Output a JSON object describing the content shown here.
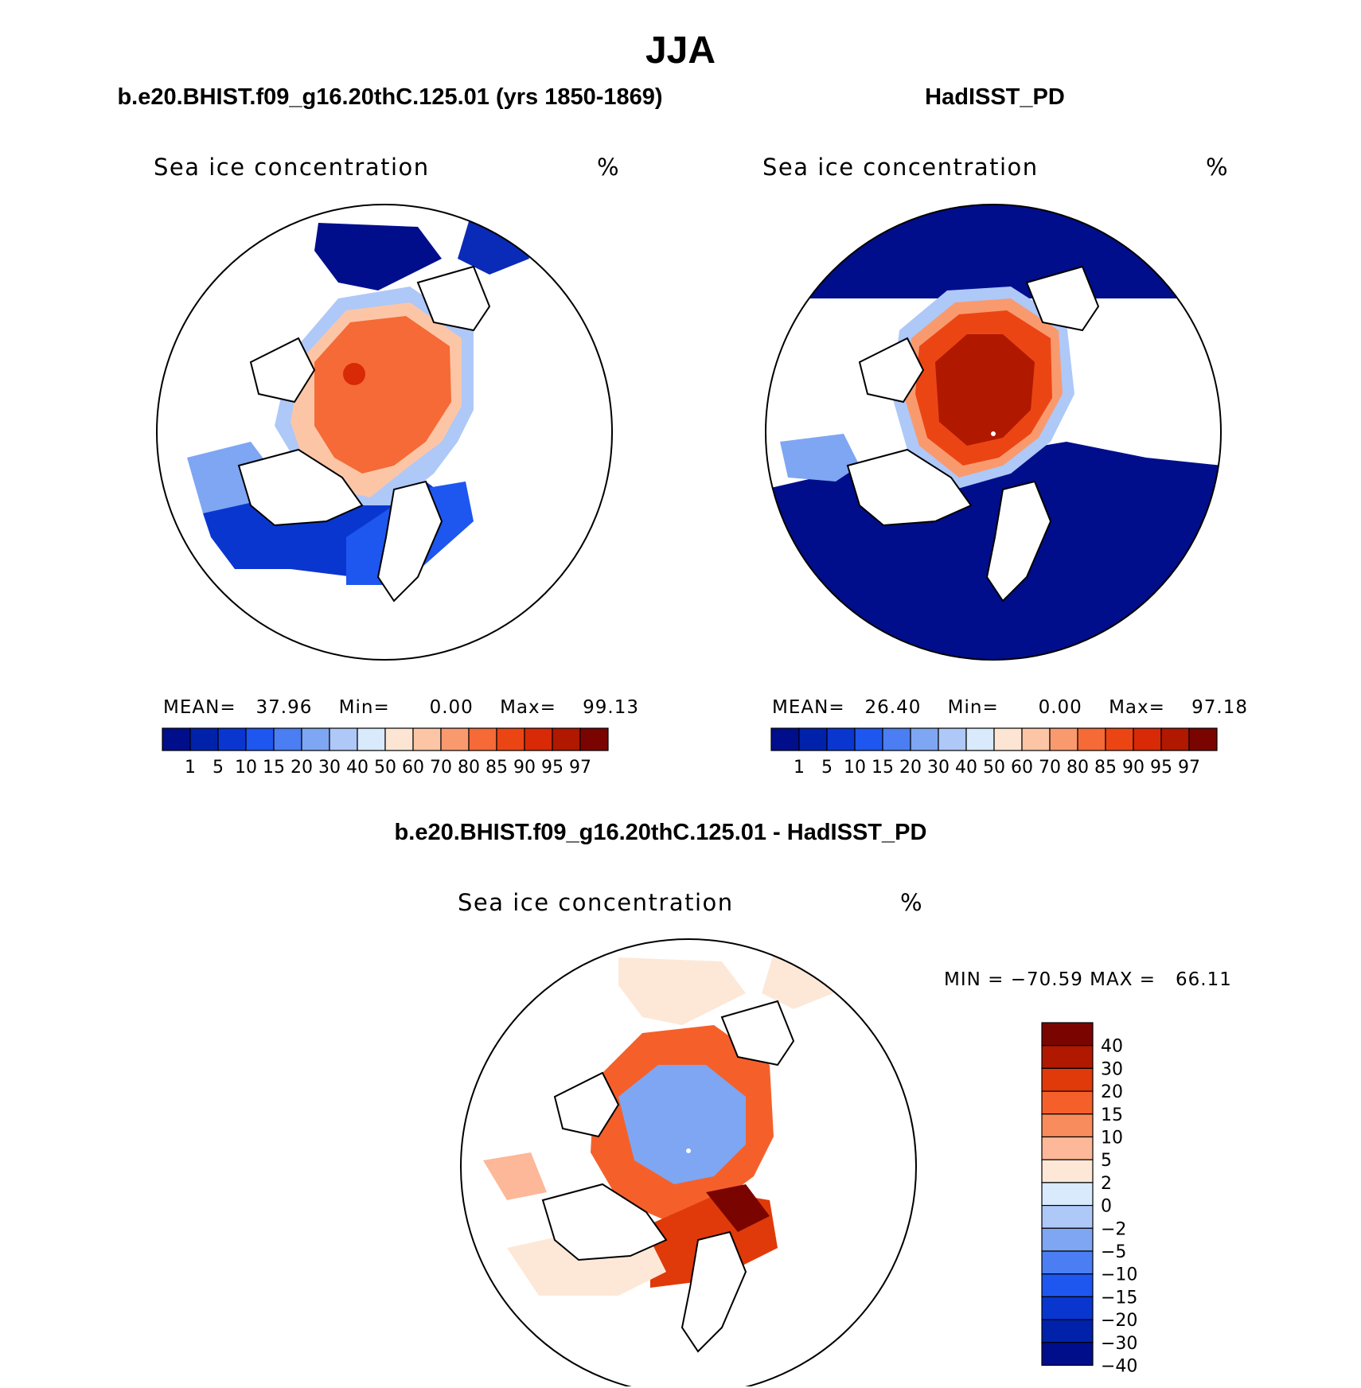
{
  "figure": {
    "season": "JJA",
    "panel_left": {
      "case": "b.e20.BHIST.f09_g16.20thC.125.01 (yrs 1850-1869)",
      "variable": "Sea ice concentration",
      "units": "%",
      "mean_label": "MEAN=",
      "mean_value": "37.96",
      "min_label": "Min=",
      "min_value": "0.00",
      "max_label": "Max=",
      "max_value": "99.13"
    },
    "panel_right": {
      "case": "HadISST_PD",
      "variable": "Sea ice concentration",
      "units": "%",
      "mean_label": "MEAN=",
      "mean_value": "26.40",
      "min_label": "Min=",
      "min_value": "0.00",
      "max_label": "Max=",
      "max_value": "97.18"
    },
    "panel_diff": {
      "case": "b.e20.BHIST.f09_g16.20thC.125.01 - HadISST_PD",
      "variable": "Sea ice concentration",
      "units": "%",
      "minmax_text": "MIN = −70.59 MAX =   66.11"
    }
  },
  "conc_colorbar": {
    "labels": [
      "1",
      "5",
      "10",
      "15",
      "20",
      "30",
      "40",
      "50",
      "60",
      "70",
      "80",
      "85",
      "90",
      "95",
      "97"
    ],
    "colors": [
      "#000e8c",
      "#0022aa",
      "#0a36d0",
      "#1e56f0",
      "#4a7ef2",
      "#7ea6f2",
      "#aec8f8",
      "#d8eafc",
      "#fde5d4",
      "#fcc6a6",
      "#f99a6e",
      "#f56a36",
      "#ec4514",
      "#d82a06",
      "#b01800",
      "#7a0500"
    ]
  },
  "diff_colorbar": {
    "labels": [
      "40",
      "30",
      "20",
      "15",
      "10",
      "5",
      "2",
      "0",
      "−2",
      "−5",
      "−10",
      "−15",
      "−20",
      "−30",
      "−40"
    ],
    "colors": [
      "#7a0500",
      "#b01800",
      "#e03a0a",
      "#f5602a",
      "#f98c5c",
      "#fcb898",
      "#fde8d8",
      "#d8eafc",
      "#aec8f8",
      "#7ea6f2",
      "#4a7ef2",
      "#1e56f0",
      "#0a36d0",
      "#0022aa",
      "#000e8c"
    ]
  }
}
